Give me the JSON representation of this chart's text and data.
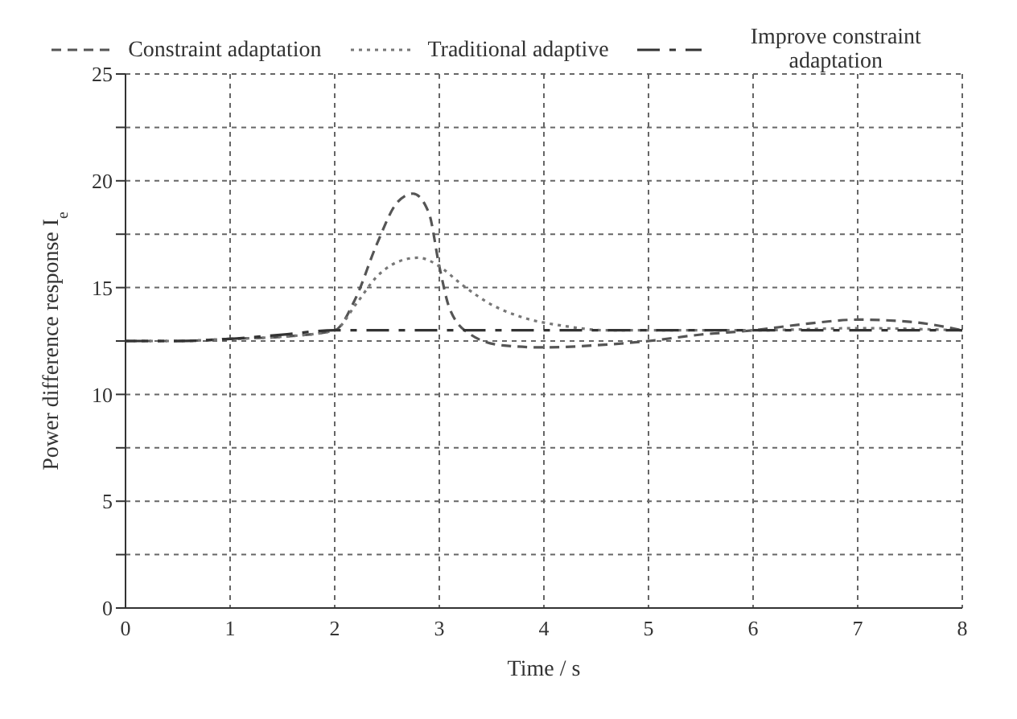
{
  "chart_data": {
    "type": "line",
    "xlabel": "Time / s",
    "ylabel": "Power difference response I$_{e}$",
    "xlim": [
      0,
      8
    ],
    "ylim": [
      0,
      25
    ],
    "xticks": [
      {
        "value": 0,
        "label": "0"
      },
      1,
      2,
      3,
      4,
      5,
      6,
      7,
      8
    ],
    "yticks": [
      0,
      {
        "value": 2.5,
        "label": null
      },
      5,
      {
        "value": 7.5,
        "label": null
      },
      10,
      {
        "value": 12.5,
        "label": null
      },
      15,
      {
        "value": 17.5,
        "label": null
      },
      20,
      {
        "value": 22.5,
        "label": null
      },
      25
    ],
    "grid": true,
    "legend": "top",
    "marker": "none",
    "series": [
      {
        "name": "Constraint adaptation",
        "color": "#555555",
        "line_style": "dashed",
        "x": [
          0,
          0.5,
          1,
          1.5,
          2,
          2.2,
          2.4,
          2.6,
          2.75,
          2.9,
          3.0,
          3.1,
          3.3,
          3.6,
          4,
          4.5,
          5,
          5.5,
          6,
          6.5,
          7,
          7.5,
          8
        ],
        "values": [
          12.5,
          12.5,
          12.6,
          12.7,
          13.0,
          14.5,
          17.0,
          19.0,
          19.4,
          18.5,
          16.0,
          14.0,
          12.8,
          12.3,
          12.2,
          12.3,
          12.5,
          12.8,
          13.0,
          13.3,
          13.5,
          13.4,
          13.0
        ]
      },
      {
        "name": "Traditional adaptive",
        "color": "#777777",
        "line_style": "dotted",
        "x": [
          0,
          0.5,
          1,
          1.5,
          2,
          2.2,
          2.4,
          2.6,
          2.8,
          3.0,
          3.2,
          3.5,
          3.8,
          4.2,
          4.6,
          5,
          6,
          7,
          8
        ],
        "values": [
          12.5,
          12.5,
          12.6,
          12.7,
          13.0,
          14.2,
          15.5,
          16.2,
          16.4,
          16.0,
          15.2,
          14.2,
          13.6,
          13.2,
          13.0,
          13.0,
          13.0,
          13.1,
          13.0
        ]
      },
      {
        "name": "Improve constraint adaptation",
        "color": "#333333",
        "line_style": "dashdot",
        "x": [
          0,
          0.5,
          1,
          1.5,
          2,
          3,
          4,
          5,
          6,
          7,
          8
        ],
        "values": [
          12.5,
          12.5,
          12.6,
          12.8,
          13.0,
          13.0,
          13.0,
          13.0,
          13.0,
          13.0,
          13.0
        ]
      }
    ]
  }
}
